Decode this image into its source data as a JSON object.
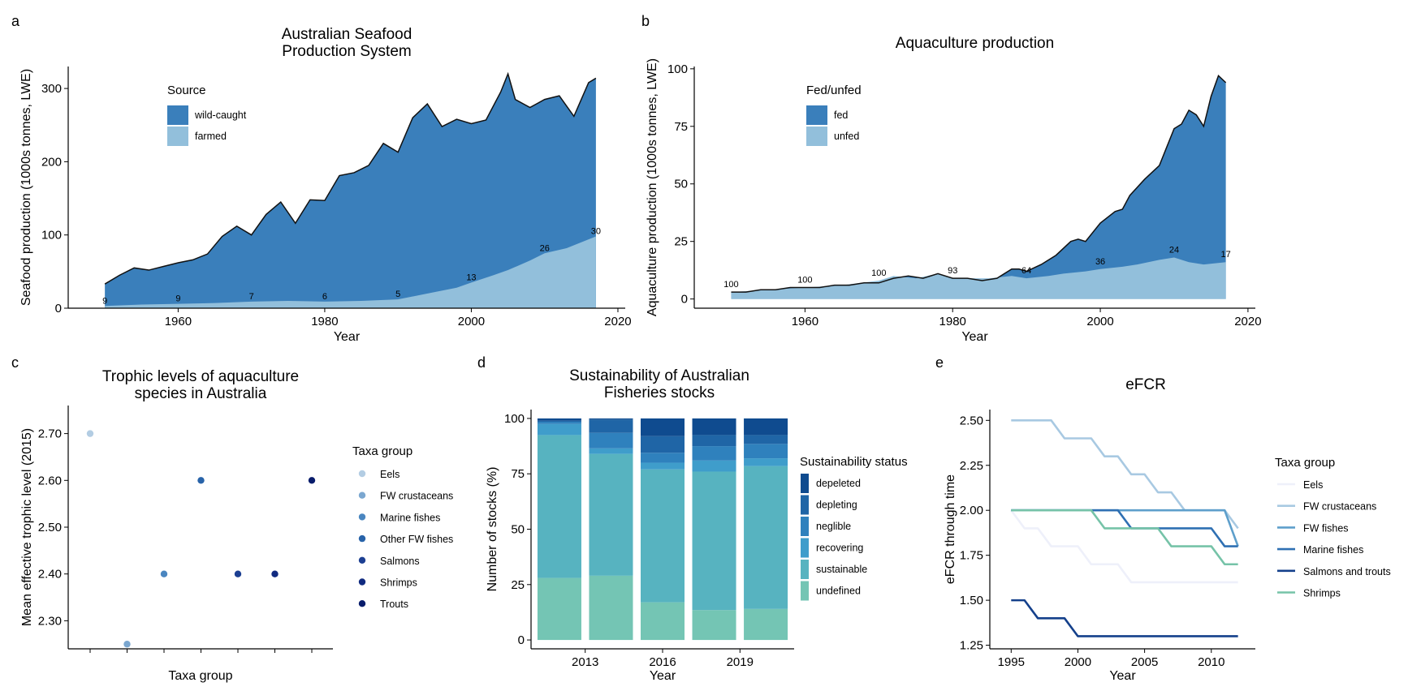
{
  "chart_data": [
    {
      "panel": "a",
      "type": "area",
      "title": [
        "Australian Seafood",
        "Production System"
      ],
      "xlabel": "Year",
      "ylabel": "Seafood production (1000s tonnes, LWE)",
      "xlim": [
        1945,
        2021
      ],
      "ylim": [
        0,
        330
      ],
      "xticks": [
        1960,
        1980,
        2000,
        2020
      ],
      "yticks": [
        0,
        100,
        200,
        300
      ],
      "legend": {
        "title": "Source",
        "position": "top-left",
        "entries": [
          "wild-caught",
          "farmed"
        ]
      },
      "colors": {
        "wild-caught": "#3a7fbb",
        "farmed": "#92bfdb"
      },
      "series": [
        {
          "name": "farmed",
          "x": [
            1950,
            1955,
            1960,
            1965,
            1970,
            1975,
            1980,
            1985,
            1990,
            1993,
            1995,
            1998,
            2000,
            2003,
            2005,
            2008,
            2010,
            2013,
            2015,
            2017
          ],
          "values": [
            3,
            5,
            6,
            7,
            9,
            10,
            9,
            10,
            12,
            18,
            22,
            28,
            35,
            45,
            52,
            65,
            75,
            82,
            90,
            98
          ]
        },
        {
          "name": "total",
          "x": [
            1950,
            1952,
            1954,
            1956,
            1958,
            1960,
            1962,
            1964,
            1966,
            1968,
            1970,
            1972,
            1974,
            1976,
            1978,
            1980,
            1982,
            1984,
            1986,
            1988,
            1990,
            1992,
            1994,
            1996,
            1998,
            2000,
            2002,
            2004,
            2005,
            2006,
            2008,
            2010,
            2012,
            2014,
            2016,
            2017
          ],
          "values": [
            33,
            45,
            55,
            52,
            57,
            62,
            66,
            74,
            98,
            112,
            100,
            128,
            145,
            116,
            148,
            147,
            181,
            185,
            195,
            225,
            213,
            260,
            279,
            248,
            258,
            252,
            257,
            295,
            320,
            285,
            274,
            285,
            290,
            262,
            308,
            314
          ]
        }
      ],
      "annotations": [
        {
          "x": 1950,
          "label": "9"
        },
        {
          "x": 1960,
          "label": "9"
        },
        {
          "x": 1970,
          "label": "7"
        },
        {
          "x": 1980,
          "label": "6"
        },
        {
          "x": 1990,
          "label": "5"
        },
        {
          "x": 2000,
          "label": "13"
        },
        {
          "x": 2010,
          "label": "26"
        },
        {
          "x": 2017,
          "label": "30"
        }
      ]
    },
    {
      "panel": "b",
      "type": "area",
      "title": [
        "Aquaculture production"
      ],
      "xlabel": "Year",
      "ylabel": "Aquaculture production (1000s tonnes, LWE)",
      "xlim": [
        1945,
        2021
      ],
      "ylim": [
        -4,
        101
      ],
      "xticks": [
        1960,
        1980,
        2000,
        2020
      ],
      "yticks": [
        0,
        25,
        50,
        75,
        100
      ],
      "legend": {
        "title": "Fed/unfed",
        "position": "top-left",
        "entries": [
          "fed",
          "unfed"
        ]
      },
      "colors": {
        "fed": "#3a7fbb",
        "unfed": "#92bfdb"
      },
      "series": [
        {
          "name": "unfed",
          "x": [
            1950,
            1955,
            1960,
            1965,
            1970,
            1972,
            1975,
            1978,
            1980,
            1983,
            1985,
            1988,
            1990,
            1993,
            1995,
            1998,
            2000,
            2003,
            2005,
            2008,
            2010,
            2012,
            2014,
            2017
          ],
          "values": [
            3,
            4,
            5,
            6,
            8,
            10,
            9,
            11,
            9,
            9,
            9,
            10,
            9,
            10,
            11,
            12,
            13,
            14,
            15,
            17,
            18,
            16,
            15,
            16
          ]
        },
        {
          "name": "total",
          "x": [
            1950,
            1952,
            1954,
            1956,
            1958,
            1960,
            1962,
            1964,
            1966,
            1968,
            1970,
            1972,
            1974,
            1976,
            1978,
            1980,
            1982,
            1984,
            1986,
            1987,
            1988,
            1989,
            1990,
            1992,
            1994,
            1996,
            1997,
            1998,
            2000,
            2002,
            2003,
            2004,
            2006,
            2008,
            2009,
            2010,
            2011,
            2012,
            2013,
            2014,
            2015,
            2016,
            2017
          ],
          "values": [
            3,
            3,
            4,
            4,
            5,
            5,
            5,
            6,
            6,
            7,
            7,
            9,
            10,
            9,
            11,
            9,
            9,
            8,
            9,
            11,
            13,
            13,
            12,
            15,
            19,
            25,
            26,
            25,
            33,
            38,
            39,
            45,
            52,
            58,
            66,
            74,
            76,
            82,
            80,
            75,
            88,
            97,
            94
          ]
        }
      ],
      "annotations": [
        {
          "x": 1950,
          "label": "100"
        },
        {
          "x": 1960,
          "label": "100"
        },
        {
          "x": 1970,
          "label": "100"
        },
        {
          "x": 1980,
          "label": "93"
        },
        {
          "x": 1990,
          "label": "64"
        },
        {
          "x": 2000,
          "label": "36"
        },
        {
          "x": 2010,
          "label": "24"
        },
        {
          "x": 2017,
          "label": "17"
        }
      ]
    },
    {
      "panel": "c",
      "type": "scatter",
      "title": [
        "Trophic levels of aquaculture",
        "species in Australia"
      ],
      "xlabel": "Taxa group",
      "ylabel": "Mean effective trophic level (2015)",
      "ylim": [
        2.24,
        2.76
      ],
      "yticks": [
        2.3,
        2.4,
        2.5,
        2.6,
        2.7
      ],
      "ytick_labels": [
        "2.30",
        "2.40",
        "2.50",
        "2.60",
        "2.70"
      ],
      "legend": {
        "title": "Taxa group",
        "position": "right"
      },
      "points": [
        {
          "name": "Eels",
          "y": 2.7,
          "color": "#b3cde3"
        },
        {
          "name": "FW crustaceans",
          "y": 2.25,
          "color": "#7ba7d0"
        },
        {
          "name": "Marine fishes",
          "y": 2.4,
          "color": "#4a86c0"
        },
        {
          "name": "Other FW fishes",
          "y": 2.6,
          "color": "#2863a9"
        },
        {
          "name": "Salmons",
          "y": 2.4,
          "color": "#1c3f92"
        },
        {
          "name": "Shrimps",
          "y": 2.4,
          "color": "#102a80"
        },
        {
          "name": "Trouts",
          "y": 2.6,
          "color": "#081c6b"
        }
      ]
    },
    {
      "panel": "d",
      "type": "bar",
      "stacked": true,
      "title": [
        "Sustainability of Australian",
        "Fisheries stocks"
      ],
      "xlabel": "Year",
      "ylabel": "Number of stocks (%)",
      "ylim": [
        -4,
        104
      ],
      "yticks": [
        0,
        25,
        50,
        75,
        100
      ],
      "x": [
        2012,
        2014,
        2016,
        2018,
        2020
      ],
      "xticks": [
        2013,
        2016,
        2019
      ],
      "legend": {
        "title": "Sustainability status",
        "position": "right",
        "entries": [
          "depeleted",
          "depleting",
          "neglible",
          "recovering",
          "sustainable",
          "undefined"
        ]
      },
      "series": [
        {
          "name": "undefined",
          "color": "#74c5b4",
          "values": [
            28,
            29,
            17,
            13.5,
            14
          ]
        },
        {
          "name": "sustainable",
          "color": "#57b3c0",
          "values": [
            64.5,
            55,
            60,
            62.5,
            64.5
          ]
        },
        {
          "name": "recovering",
          "color": "#3f9dcb",
          "values": [
            5,
            2.5,
            3,
            5,
            3.5
          ]
        },
        {
          "name": "neglible",
          "color": "#2f81bd",
          "values": [
            1,
            7,
            4.5,
            6.5,
            6.5
          ]
        },
        {
          "name": "depleting",
          "color": "#1f65a6",
          "values": [
            0.5,
            6,
            7.5,
            5,
            4
          ]
        },
        {
          "name": "depeleted",
          "color": "#0f4b8f",
          "values": [
            1,
            0.5,
            8,
            7.5,
            7.5
          ]
        }
      ]
    },
    {
      "panel": "e",
      "type": "line",
      "title": [
        "eFCR"
      ],
      "xlabel": "Year",
      "ylabel": "eFCR through time",
      "xlim": [
        1993.4,
        2013.3
      ],
      "ylim": [
        1.23,
        2.56
      ],
      "xticks": [
        1995,
        2000,
        2005,
        2010
      ],
      "yticks": [
        1.25,
        1.5,
        1.75,
        2.0,
        2.25,
        2.5
      ],
      "ytick_labels": [
        "1.25",
        "1.50",
        "1.75",
        "2.00",
        "2.25",
        "2.50"
      ],
      "legend": {
        "title": "Taxa group",
        "position": "right"
      },
      "x": [
        1995,
        1996,
        1997,
        1998,
        1999,
        2000,
        2001,
        2002,
        2003,
        2004,
        2005,
        2006,
        2007,
        2008,
        2009,
        2010,
        2011,
        2012
      ],
      "series": [
        {
          "name": "Eels",
          "color": "#eef0fa",
          "values": [
            2.0,
            1.9,
            1.9,
            1.8,
            1.8,
            1.8,
            1.7,
            1.7,
            1.7,
            1.6,
            1.6,
            1.6,
            1.6,
            1.6,
            1.6,
            1.6,
            1.6,
            1.6
          ]
        },
        {
          "name": "FW crustaceans",
          "color": "#a8c9e2",
          "values": [
            2.5,
            2.5,
            2.5,
            2.5,
            2.4,
            2.4,
            2.4,
            2.3,
            2.3,
            2.2,
            2.2,
            2.1,
            2.1,
            2.0,
            2.0,
            2.0,
            2.0,
            1.9
          ]
        },
        {
          "name": "FW fishes",
          "color": "#5e9fcb",
          "values": [
            2.0,
            2.0,
            2.0,
            2.0,
            2.0,
            2.0,
            2.0,
            2.0,
            2.0,
            2.0,
            2.0,
            2.0,
            2.0,
            2.0,
            2.0,
            2.0,
            2.0,
            1.8
          ]
        },
        {
          "name": "Marine fishes",
          "color": "#2f70b3",
          "values": [
            2.0,
            2.0,
            2.0,
            2.0,
            2.0,
            2.0,
            2.0,
            2.0,
            2.0,
            1.9,
            1.9,
            1.9,
            1.9,
            1.9,
            1.9,
            1.9,
            1.8,
            1.8
          ]
        },
        {
          "name": "Salmons and trouts",
          "color": "#14408b",
          "values": [
            1.5,
            1.5,
            1.4,
            1.4,
            1.4,
            1.3,
            1.3,
            1.3,
            1.3,
            1.3,
            1.3,
            1.3,
            1.3,
            1.3,
            1.3,
            1.3,
            1.3,
            1.3
          ]
        },
        {
          "name": "Shrimps",
          "color": "#76c3a8",
          "values": [
            2.0,
            2.0,
            2.0,
            2.0,
            2.0,
            2.0,
            2.0,
            1.9,
            1.9,
            1.9,
            1.9,
            1.9,
            1.8,
            1.8,
            1.8,
            1.8,
            1.7,
            1.7
          ]
        }
      ]
    }
  ]
}
